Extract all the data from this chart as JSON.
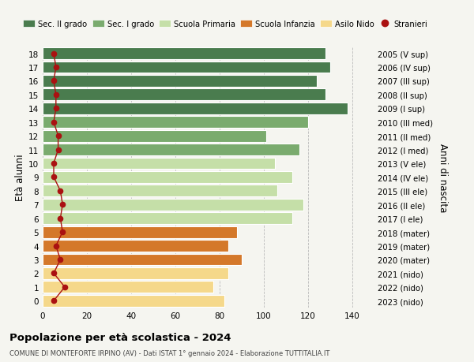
{
  "ages": [
    18,
    17,
    16,
    15,
    14,
    13,
    12,
    11,
    10,
    9,
    8,
    7,
    6,
    5,
    4,
    3,
    2,
    1,
    0
  ],
  "years": [
    "2005 (V sup)",
    "2006 (IV sup)",
    "2007 (III sup)",
    "2008 (II sup)",
    "2009 (I sup)",
    "2010 (III med)",
    "2011 (II med)",
    "2012 (I med)",
    "2013 (V ele)",
    "2014 (IV ele)",
    "2015 (III ele)",
    "2016 (II ele)",
    "2017 (I ele)",
    "2018 (mater)",
    "2019 (mater)",
    "2020 (mater)",
    "2021 (nido)",
    "2022 (nido)",
    "2023 (nido)"
  ],
  "values": [
    128,
    130,
    124,
    128,
    138,
    120,
    101,
    116,
    105,
    113,
    106,
    118,
    113,
    88,
    84,
    90,
    84,
    77,
    82
  ],
  "stranieri": [
    5,
    6,
    5,
    6,
    6,
    5,
    7,
    7,
    5,
    5,
    8,
    9,
    8,
    9,
    6,
    8,
    5,
    10,
    5
  ],
  "bar_colors": [
    "#4a7c4e",
    "#4a7c4e",
    "#4a7c4e",
    "#4a7c4e",
    "#4a7c4e",
    "#7aab6e",
    "#7aab6e",
    "#7aab6e",
    "#c5dfa8",
    "#c5dfa8",
    "#c5dfa8",
    "#c5dfa8",
    "#c5dfa8",
    "#d4782a",
    "#d4782a",
    "#d4782a",
    "#f5d88a",
    "#f5d88a",
    "#f5d88a"
  ],
  "legend_labels": [
    "Sec. II grado",
    "Sec. I grado",
    "Scuola Primaria",
    "Scuola Infanzia",
    "Asilo Nido",
    "Stranieri"
  ],
  "legend_colors": [
    "#4a7c4e",
    "#7aab6e",
    "#c5dfa8",
    "#d4782a",
    "#f5d88a",
    "#aa1111"
  ],
  "ylabel": "Età alunni",
  "ylabel2": "Anni di nascita",
  "title": "Popolazione per età scolastica - 2024",
  "subtitle": "COMUNE DI MONTEFORTE IRPINO (AV) - Dati ISTAT 1° gennaio 2024 - Elaborazione TUTTITALIA.IT",
  "stranieri_color": "#aa1111",
  "bg_color": "#f5f5f0",
  "bar_edge_color": "white"
}
